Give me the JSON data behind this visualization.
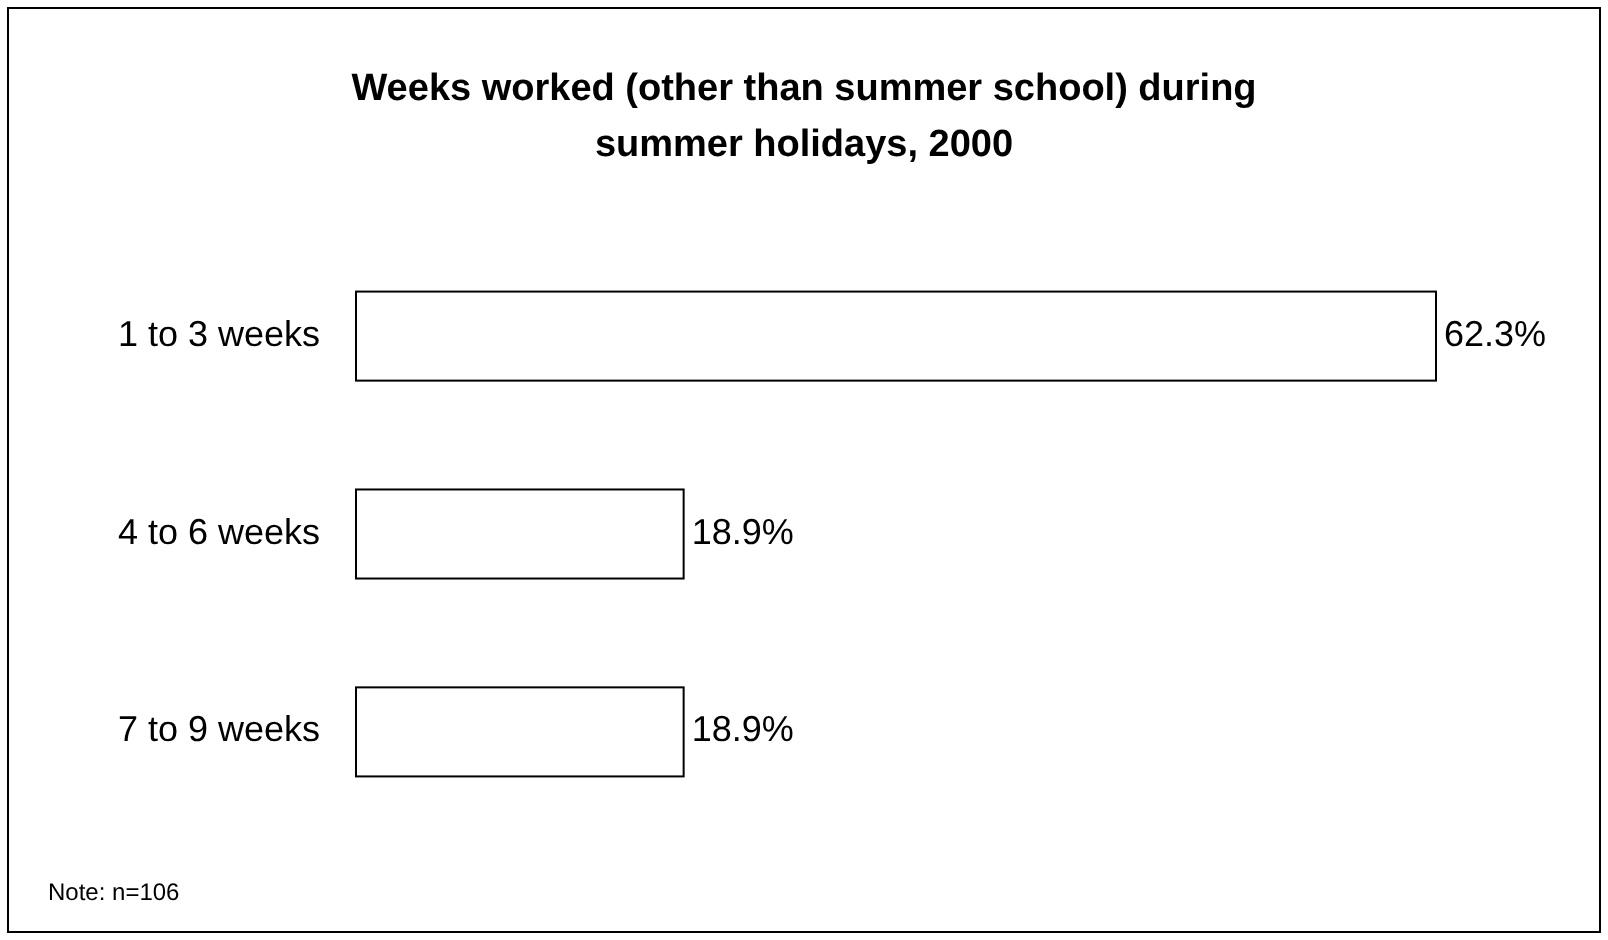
{
  "chart_data": {
    "type": "bar",
    "orientation": "horizontal",
    "title": "Weeks worked (other than summer school) during summer holidays, 2000",
    "categories": [
      "1 to 3 weeks",
      "4 to 6 weeks",
      "7 to 9 weeks"
    ],
    "values": [
      62.3,
      18.9,
      18.9
    ],
    "value_labels": [
      "62.3%",
      "18.9%",
      "18.9%"
    ],
    "color": "#ffffff",
    "annotations": [
      "Note: n=106"
    ]
  }
}
